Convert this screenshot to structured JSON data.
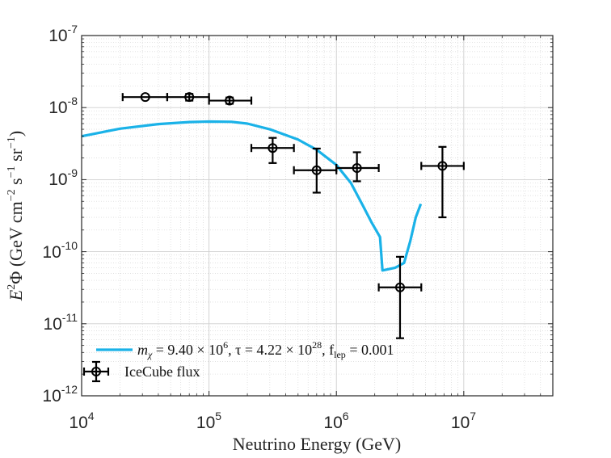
{
  "chart_data": {
    "type": "line",
    "title": "",
    "xlabel": "Neutrino Energy (GeV)",
    "ylabel": {
      "e": "E",
      "e_exp": "2",
      "phi": "Φ",
      "open": " (GeV cm",
      "cm_exp": "−2",
      "s": " s",
      "s_exp": "−1",
      "sr": " sr",
      "sr_exp": "−1",
      "close": ")"
    },
    "xscale": "log",
    "yscale": "log",
    "xlim": [
      10000,
      50000000
    ],
    "ylim": [
      1e-12,
      1e-07
    ],
    "grid": true,
    "x_ticks": [
      {
        "base": "10",
        "exp": "4",
        "value": 10000
      },
      {
        "base": "10",
        "exp": "5",
        "value": 100000
      },
      {
        "base": "10",
        "exp": "6",
        "value": 1000000
      },
      {
        "base": "10",
        "exp": "7",
        "value": 10000000
      }
    ],
    "y_ticks": [
      {
        "base": "10",
        "exp": "-12",
        "value": 1e-12
      },
      {
        "base": "10",
        "exp": "-11",
        "value": 1e-11
      },
      {
        "base": "10",
        "exp": "-10",
        "value": 1e-10
      },
      {
        "base": "10",
        "exp": "-9",
        "value": 1e-09
      },
      {
        "base": "10",
        "exp": "-8",
        "value": 1e-08
      },
      {
        "base": "10",
        "exp": "-7",
        "value": 1e-07
      }
    ],
    "legend_position": "bottom-left",
    "series": [
      {
        "name": "model",
        "type": "line",
        "color": "#1ab2e8",
        "points": [
          [
            10000,
            4e-09
          ],
          [
            20000,
            5.1e-09
          ],
          [
            40000,
            5.9e-09
          ],
          [
            70000,
            6.3e-09
          ],
          [
            100000,
            6.4e-09
          ],
          [
            150000,
            6.35e-09
          ],
          [
            200000,
            6e-09
          ],
          [
            300000,
            5e-09
          ],
          [
            500000,
            3.6e-09
          ],
          [
            700000,
            2.6e-09
          ],
          [
            1000000,
            1.6e-09
          ],
          [
            1300000,
            9e-10
          ],
          [
            1600000,
            4.5e-10
          ],
          [
            1900000,
            2.5e-10
          ],
          [
            2200000,
            1.6e-10
          ],
          [
            2300000,
            5.5e-11
          ],
          [
            2900000,
            6e-11
          ],
          [
            3400000,
            7e-11
          ],
          [
            3800000,
            1.4e-10
          ],
          [
            4200000,
            3e-10
          ],
          [
            4600000,
            4.6e-10
          ]
        ]
      },
      {
        "name": "IceCube flux",
        "type": "errorbar",
        "color": "#000000",
        "points": [
          {
            "x": 31600,
            "y": 1.4e-08,
            "xlo": 21000,
            "xhi": 47000,
            "ylo": 1.4e-08,
            "yhi": 1.4e-08
          },
          {
            "x": 70000,
            "y": 1.4e-08,
            "xlo": 47000,
            "xhi": 100000,
            "ylo": 1.25e-08,
            "yhi": 1.55e-08
          },
          {
            "x": 145000,
            "y": 1.25e-08,
            "xlo": 100000,
            "xhi": 215000,
            "ylo": 1.13e-08,
            "yhi": 1.38e-08
          },
          {
            "x": 316000,
            "y": 2.75e-09,
            "xlo": 215000,
            "xhi": 464000,
            "ylo": 1.7e-09,
            "yhi": 3.8e-09
          },
          {
            "x": 700000,
            "y": 1.35e-09,
            "xlo": 464000,
            "xhi": 1000000,
            "ylo": 6.6e-10,
            "yhi": 2.7e-09
          },
          {
            "x": 1450000,
            "y": 1.45e-09,
            "xlo": 1000000,
            "xhi": 2150000,
            "ylo": 9.5e-10,
            "yhi": 2.4e-09
          },
          {
            "x": 3160000,
            "y": 3.2e-11,
            "xlo": 2150000,
            "xhi": 4640000,
            "ylo": 6.3e-12,
            "yhi": 8.5e-11
          },
          {
            "x": 6800000,
            "y": 1.55e-09,
            "xlo": 4640000,
            "xhi": 10000000,
            "ylo": 3e-10,
            "yhi": 2.85e-09
          }
        ]
      }
    ],
    "legend": [
      {
        "series": "model",
        "m": "m",
        "m_sub": "χ",
        "m_eq": " = 9.40 × 10",
        "m_exp": "6",
        "tau": ", τ = 4.22 × 10",
        "tau_exp": "28",
        "f": ", f",
        "f_sub": "lep",
        "f_eq": " = 0.001"
      },
      {
        "series": "IceCube flux",
        "label": "IceCube flux"
      }
    ]
  }
}
